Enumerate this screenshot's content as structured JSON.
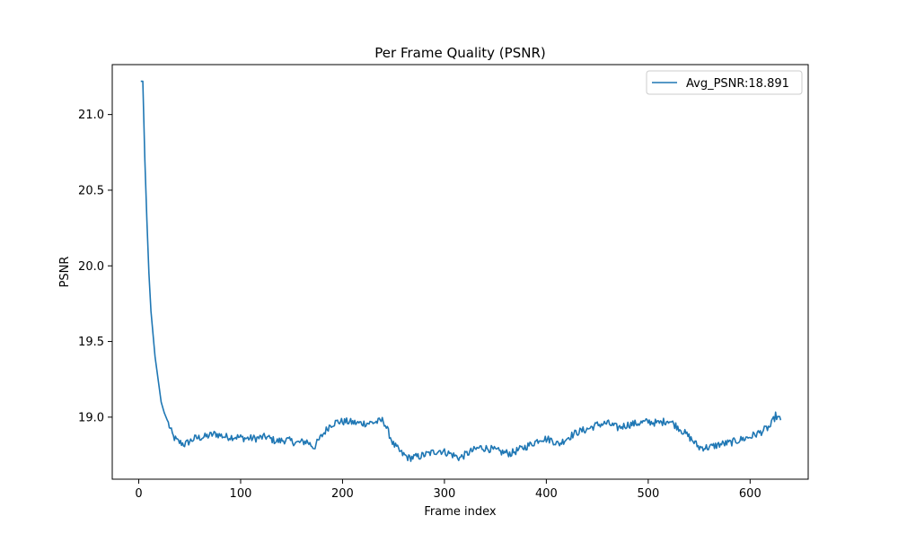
{
  "chart_data": {
    "type": "line",
    "title": "Per Frame Quality (PSNR)",
    "xlabel": "Frame index",
    "ylabel": "PSNR",
    "xlim": [
      -26,
      657
    ],
    "ylim": [
      18.59,
      21.33
    ],
    "x_ticks": [
      0,
      100,
      200,
      300,
      400,
      500,
      600
    ],
    "x_tick_labels": [
      "0",
      "100",
      "200",
      "300",
      "400",
      "500",
      "600"
    ],
    "y_ticks": [
      19.0,
      19.5,
      20.0,
      20.5,
      21.0
    ],
    "y_tick_labels": [
      "19.0",
      "19.5",
      "20.0",
      "20.5",
      "21.0"
    ],
    "grid": false,
    "legend_position": "top-right",
    "series": [
      {
        "name": "Avg_PSNR:18.891",
        "color": "#1f77b4",
        "key_points": [
          [
            2,
            21.22
          ],
          [
            4,
            21.22
          ],
          [
            6,
            20.7
          ],
          [
            8,
            20.3
          ],
          [
            10,
            19.95
          ],
          [
            12,
            19.7
          ],
          [
            14,
            19.55
          ],
          [
            16,
            19.4
          ],
          [
            18,
            19.3
          ],
          [
            20,
            19.2
          ],
          [
            22,
            19.1
          ],
          [
            25,
            19.03
          ],
          [
            28,
            18.98
          ],
          [
            31,
            18.92
          ],
          [
            34,
            18.87
          ],
          [
            38,
            18.84
          ],
          [
            45,
            18.82
          ],
          [
            55,
            18.86
          ],
          [
            65,
            18.87
          ],
          [
            75,
            18.89
          ],
          [
            85,
            18.87
          ],
          [
            95,
            18.87
          ],
          [
            105,
            18.86
          ],
          [
            115,
            18.86
          ],
          [
            125,
            18.87
          ],
          [
            135,
            18.84
          ],
          [
            145,
            18.85
          ],
          [
            155,
            18.83
          ],
          [
            165,
            18.84
          ],
          [
            172,
            18.8
          ],
          [
            180,
            18.88
          ],
          [
            188,
            18.95
          ],
          [
            195,
            18.97
          ],
          [
            205,
            18.97
          ],
          [
            215,
            18.96
          ],
          [
            225,
            18.96
          ],
          [
            235,
            18.97
          ],
          [
            240,
            18.98
          ],
          [
            245,
            18.9
          ],
          [
            250,
            18.82
          ],
          [
            258,
            18.76
          ],
          [
            265,
            18.73
          ],
          [
            275,
            18.74
          ],
          [
            285,
            18.76
          ],
          [
            295,
            18.78
          ],
          [
            305,
            18.76
          ],
          [
            315,
            18.73
          ],
          [
            325,
            18.77
          ],
          [
            335,
            18.8
          ],
          [
            345,
            18.79
          ],
          [
            355,
            18.77
          ],
          [
            365,
            18.76
          ],
          [
            375,
            18.79
          ],
          [
            385,
            18.82
          ],
          [
            395,
            18.86
          ],
          [
            405,
            18.85
          ],
          [
            412,
            18.82
          ],
          [
            420,
            18.86
          ],
          [
            430,
            18.9
          ],
          [
            440,
            18.92
          ],
          [
            450,
            18.95
          ],
          [
            460,
            18.96
          ],
          [
            470,
            18.93
          ],
          [
            480,
            18.95
          ],
          [
            490,
            18.96
          ],
          [
            500,
            18.97
          ],
          [
            510,
            18.96
          ],
          [
            520,
            18.98
          ],
          [
            530,
            18.93
          ],
          [
            540,
            18.87
          ],
          [
            550,
            18.8
          ],
          [
            560,
            18.8
          ],
          [
            570,
            18.82
          ],
          [
            580,
            18.83
          ],
          [
            590,
            18.85
          ],
          [
            600,
            18.87
          ],
          [
            610,
            18.9
          ],
          [
            620,
            18.94
          ],
          [
            625,
            19.01
          ],
          [
            628,
            18.99
          ],
          [
            630,
            18.98
          ]
        ]
      }
    ]
  }
}
